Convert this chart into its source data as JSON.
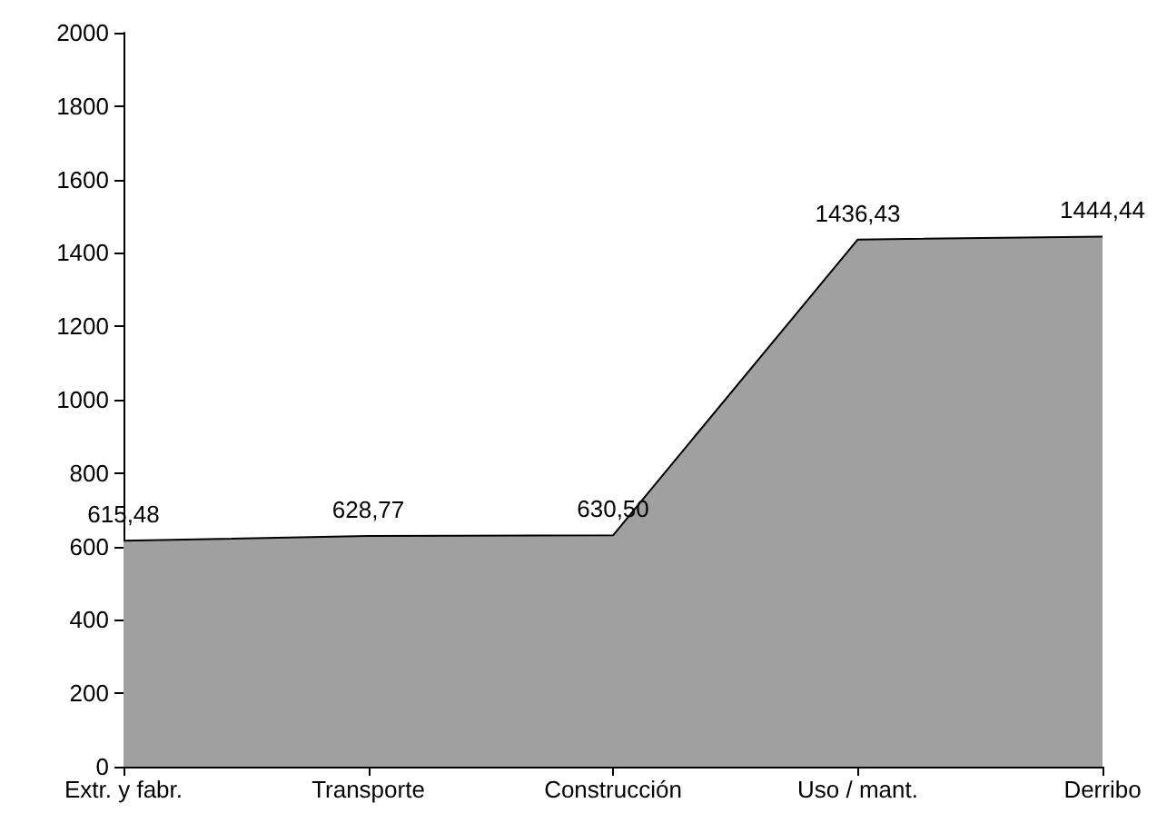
{
  "chart_data": {
    "type": "area",
    "categories": [
      "Extr. y fabr.",
      "Transporte",
      "Construcción",
      "Uso / mant.",
      "Derribo"
    ],
    "values": [
      615.48,
      628.77,
      630.5,
      1436.43,
      1444.44
    ],
    "value_labels": [
      "615,48",
      "628,77",
      "630,50",
      "1436,43",
      "1444,44"
    ],
    "color": "#a0a0a0",
    "ylim": [
      0,
      2000
    ],
    "yticks": [
      0,
      200,
      400,
      600,
      800,
      1000,
      1200,
      1400,
      1600,
      1800,
      2000
    ],
    "grid": false
  }
}
